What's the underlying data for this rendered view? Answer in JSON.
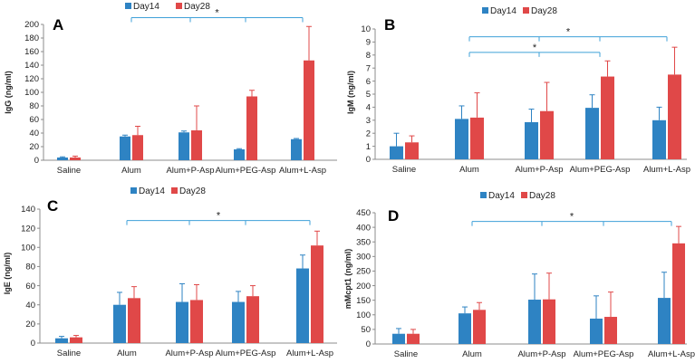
{
  "legend": {
    "day14": "Day14",
    "day28": "Day28"
  },
  "colors": {
    "day14": "#2e83c3",
    "day28": "#e04848",
    "axis": "#8c8c8c",
    "bracket": "#3fa0d8"
  },
  "significance": "*",
  "chart_data": [
    {
      "type": "bar",
      "panel": "A",
      "ylabel": "IgG (ng/ml)",
      "ylim": [
        0,
        200
      ],
      "yticks": [
        0,
        20,
        40,
        60,
        80,
        100,
        120,
        140,
        160,
        180,
        200
      ],
      "categories": [
        "Saline",
        "Alum",
        "Alum+P-Asp",
        "Alum+PEG-Asp",
        "Alum+L-Asp"
      ],
      "series": [
        {
          "name": "Day14",
          "values": [
            4,
            35,
            41,
            16,
            31
          ],
          "errors": [
            1,
            2,
            2,
            1,
            1
          ]
        },
        {
          "name": "Day28",
          "values": [
            4,
            37,
            44,
            94,
            147
          ],
          "errors": [
            2,
            13,
            36,
            9,
            50
          ]
        }
      ],
      "brackets": [
        {
          "from": 1,
          "to": 4,
          "level": 210,
          "star": true,
          "ticks": [
            1,
            2,
            3,
            4
          ]
        }
      ]
    },
    {
      "type": "bar",
      "panel": "B",
      "ylabel": "IgM (ng/ml)",
      "ylim": [
        0,
        10
      ],
      "yticks": [
        0,
        1,
        2,
        3,
        4,
        5,
        6,
        7,
        8,
        9,
        10
      ],
      "categories": [
        "Saline",
        "Alum",
        "Alum+P-Asp",
        "Alum+PEG-Asp",
        "Alum+L-Asp"
      ],
      "series": [
        {
          "name": "Day14",
          "values": [
            1.0,
            3.1,
            2.85,
            3.95,
            3.0
          ],
          "errors": [
            1.0,
            1.0,
            1.0,
            1.0,
            1.0
          ]
        },
        {
          "name": "Day28",
          "values": [
            1.3,
            3.2,
            3.7,
            6.35,
            6.5
          ],
          "errors": [
            0.5,
            1.9,
            2.2,
            1.2,
            2.1
          ]
        }
      ],
      "brackets": [
        {
          "from": 1,
          "to": 4,
          "level": 9.4,
          "star": true,
          "ticks": [
            1,
            2,
            3,
            4
          ]
        },
        {
          "from": 1,
          "to": 3,
          "level": 8.2,
          "star": true,
          "ticks": [
            1,
            2,
            3
          ]
        }
      ]
    },
    {
      "type": "bar",
      "panel": "C",
      "ylabel": "IgE (ng/ml)",
      "ylim": [
        0,
        140
      ],
      "yticks": [
        0,
        20,
        40,
        60,
        80,
        100,
        120,
        140
      ],
      "categories": [
        "Saline",
        "Alum",
        "Alum+P-Asp",
        "Alum+PEG-Asp",
        "Alum+L-Asp"
      ],
      "series": [
        {
          "name": "Day14",
          "values": [
            5,
            40,
            43,
            43,
            78
          ],
          "errors": [
            2,
            13,
            19,
            11,
            14
          ]
        },
        {
          "name": "Day28",
          "values": [
            6,
            47,
            45,
            49,
            102
          ],
          "errors": [
            2,
            12,
            16,
            11,
            15
          ]
        }
      ],
      "brackets": [
        {
          "from": 1,
          "to": 4,
          "level": 128,
          "star": true,
          "ticks": [
            1,
            2,
            3,
            4
          ]
        }
      ]
    },
    {
      "type": "bar",
      "panel": "D",
      "ylabel": "mMcpt1 (ng/ml)",
      "ylim": [
        0,
        450
      ],
      "yticks": [
        0,
        50,
        100,
        150,
        200,
        250,
        300,
        350,
        400,
        450
      ],
      "categories": [
        "Saline",
        "Alum",
        "Alum+P-Asp",
        "Alum+PEG-Asp",
        "Alum+L-Asp"
      ],
      "series": [
        {
          "name": "Day14",
          "values": [
            35,
            105,
            152,
            87,
            158
          ],
          "errors": [
            18,
            22,
            88,
            78,
            88
          ]
        },
        {
          "name": "Day28",
          "values": [
            35,
            117,
            153,
            93,
            345
          ],
          "errors": [
            15,
            25,
            90,
            85,
            58
          ]
        }
      ],
      "brackets": [
        {
          "from": 1,
          "to": 4,
          "level": 420,
          "star": true,
          "ticks": [
            1,
            2,
            3,
            4
          ]
        }
      ]
    }
  ]
}
